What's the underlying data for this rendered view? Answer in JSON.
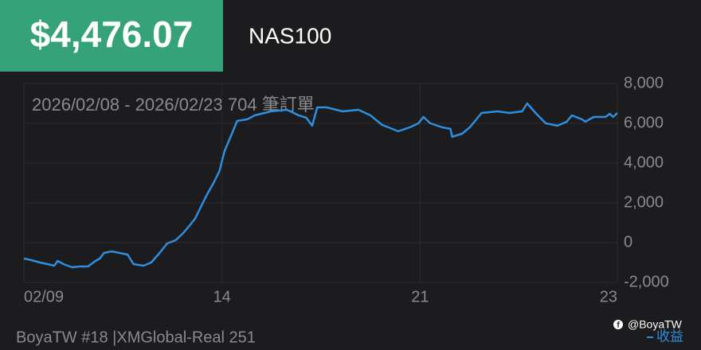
{
  "chart_data": {
    "type": "line",
    "price": "$4,476.07",
    "symbol": "NAS100",
    "subtitle": "2026/02/08 - 2026/02/23 704 筆訂單",
    "footer": "BoyaTW #18 |XMGlobal-Real 251",
    "handle": "@BoyaTW",
    "series": [
      {
        "name": "收益",
        "color": "#2e8fe0",
        "x": [
          0,
          9,
          19,
          28,
          36,
          40,
          47,
          57,
          66,
          76,
          85,
          90,
          95,
          104,
          123,
          130,
          142,
          151,
          161,
          170,
          180,
          189,
          197,
          203,
          210,
          217,
          225,
          232,
          238,
          246,
          253,
          265,
          274,
          293,
          312,
          326,
          335,
          342,
          348,
          359,
          378,
          397,
          411,
          425,
          444,
          458,
          468,
          474,
          482,
          496,
          506,
          508,
          520,
          529,
          543,
          562,
          576,
          591,
          597,
          607,
          619,
          633,
          644,
          650,
          662,
          666,
          676,
          690,
          695,
          699,
          704
        ],
        "values": [
          -800,
          -880,
          -1000,
          -1080,
          -1160,
          -920,
          -1080,
          -1240,
          -1200,
          -1200,
          -920,
          -800,
          -520,
          -440,
          -600,
          -1080,
          -1160,
          -1000,
          -520,
          -40,
          120,
          480,
          880,
          1200,
          1800,
          2400,
          3000,
          3600,
          4600,
          5400,
          6120,
          6200,
          6400,
          6600,
          6680,
          6400,
          6280,
          5880,
          6800,
          6800,
          6600,
          6680,
          6400,
          5920,
          5600,
          5800,
          6000,
          6320,
          6000,
          5800,
          5720,
          5320,
          5480,
          5800,
          6520,
          6600,
          6520,
          6600,
          7000,
          6520,
          6000,
          5880,
          6080,
          6400,
          6200,
          6080,
          6320,
          6320,
          6480,
          6320,
          6520
        ]
      }
    ],
    "xlim": [
      0,
      704
    ],
    "xticks": [
      {
        "value": 0,
        "label": "02/09"
      },
      {
        "value": 235,
        "label": "14"
      },
      {
        "value": 470,
        "label": "21"
      },
      {
        "value": 704,
        "label": "23"
      }
    ],
    "ylim": [
      -2000,
      8000
    ],
    "yticks": [
      {
        "value": 8000,
        "label": "8,000"
      },
      {
        "value": 6000,
        "label": "6,000"
      },
      {
        "value": 4000,
        "label": "4,000"
      },
      {
        "value": 2000,
        "label": "2,000"
      },
      0,
      {
        "value": -2000,
        "label": "-2,000"
      }
    ],
    "grid": true
  }
}
